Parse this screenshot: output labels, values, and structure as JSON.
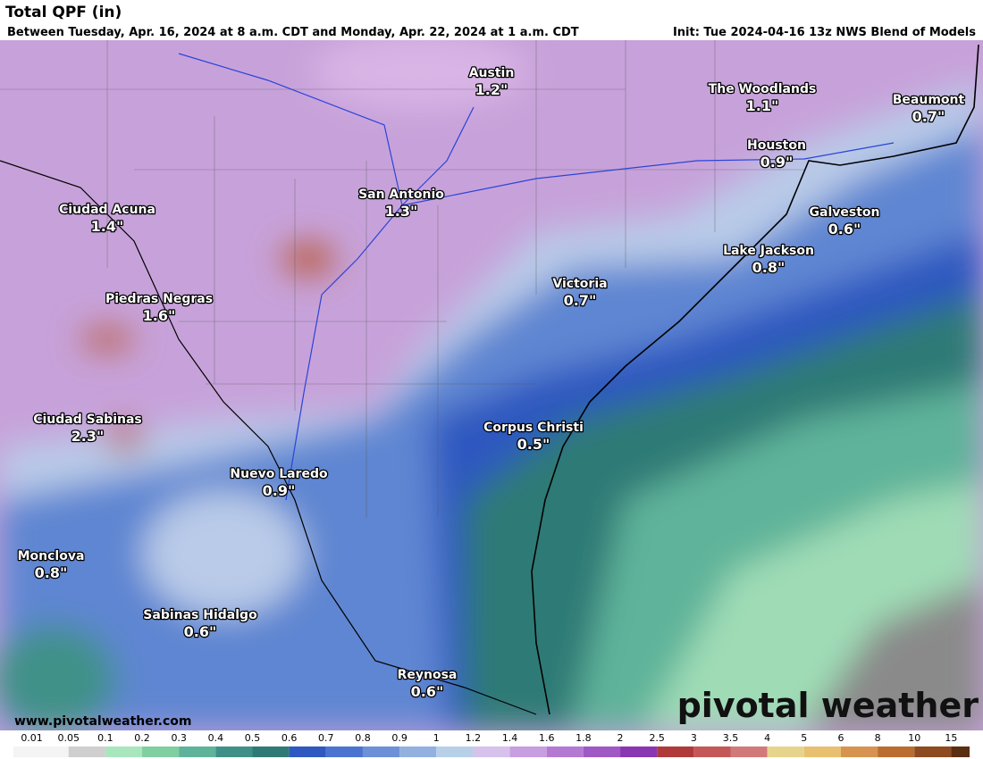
{
  "header": {
    "title": "Total QPF (in)",
    "subtitle": "Between Tuesday, Apr. 16, 2024 at 8 a.m. CDT and Monday, Apr. 22, 2024 at 1 a.m. CDT",
    "init": "Init: Tue 2024-04-16 13z NWS Blend of Models"
  },
  "cities": [
    {
      "name": "Austin",
      "value": "1.2\""
    },
    {
      "name": "The Woodlands",
      "value": "1.1\""
    },
    {
      "name": "Beaumont",
      "value": "0.7\""
    },
    {
      "name": "Houston",
      "value": "0.9\""
    },
    {
      "name": "San Antonio",
      "value": "1.3\""
    },
    {
      "name": "Ciudad Acuna",
      "value": "1.4\""
    },
    {
      "name": "Galveston",
      "value": "0.6\""
    },
    {
      "name": "Lake Jackson",
      "value": "0.8\""
    },
    {
      "name": "Victoria",
      "value": "0.7\""
    },
    {
      "name": "Piedras Negras",
      "value": "1.6\""
    },
    {
      "name": "Ciudad Sabinas",
      "value": "2.3\""
    },
    {
      "name": "Corpus Christi",
      "value": "0.5\""
    },
    {
      "name": "Nuevo Laredo",
      "value": "0.9\""
    },
    {
      "name": "Monclova",
      "value": "0.8\""
    },
    {
      "name": "Sabinas Hidalgo",
      "value": "0.6\""
    },
    {
      "name": "Reynosa",
      "value": "0.6\""
    }
  ],
  "colorbar": {
    "ticks": [
      0.01,
      0.05,
      0.1,
      0.2,
      0.3,
      0.4,
      0.5,
      0.6,
      0.7,
      0.8,
      0.9,
      1,
      1.2,
      1.4,
      1.6,
      1.8,
      2,
      2.5,
      3,
      3.5,
      4,
      5,
      6,
      8,
      10,
      15
    ],
    "colors": [
      "#f4f4f4",
      "#cfcfcf",
      "#a8e6be",
      "#7fcfa0",
      "#5fb39a",
      "#3f9188",
      "#2f7a76",
      "#2f58c0",
      "#4a74d0",
      "#6c91d8",
      "#92b0e0",
      "#b8cfe8",
      "#d6c2ec",
      "#c79ee0",
      "#b47ad3",
      "#9f58c4",
      "#8a36b2",
      "#b03a3a",
      "#c45858",
      "#d27a7a",
      "#e7d48c",
      "#e8c070",
      "#d69450",
      "#bb6d30",
      "#8e4a20",
      "#5a2e10"
    ]
  },
  "website": "www.pivotalweather.com",
  "watermark": "pivotal weather"
}
